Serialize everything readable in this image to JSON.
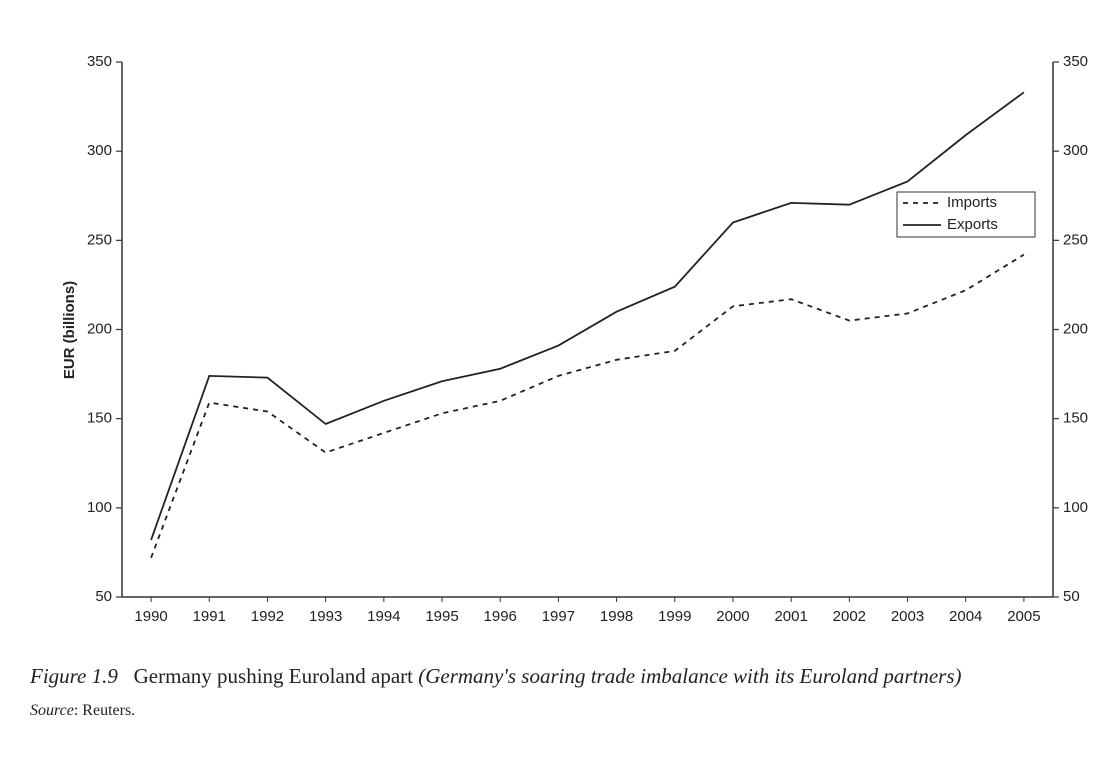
{
  "chart_data": {
    "type": "line",
    "ylabel": "EUR (billions)",
    "categories": [
      "1990",
      "1991",
      "1992",
      "1993",
      "1994",
      "1995",
      "1996",
      "1997",
      "1998",
      "1999",
      "2000",
      "2001",
      "2002",
      "2003",
      "2004",
      "2005"
    ],
    "series": [
      {
        "name": "Imports",
        "color": "#222222",
        "dash": true,
        "axis": "y",
        "values": [
          72,
          159,
          154,
          131,
          142,
          153,
          160,
          174,
          183,
          188,
          213,
          217,
          205,
          209,
          222,
          242
        ]
      },
      {
        "name": "Exports",
        "color": "#222222",
        "dash": false,
        "axis": "y",
        "values": [
          82,
          174,
          173,
          147,
          160,
          171,
          178,
          191,
          210,
          224,
          260,
          271,
          270,
          283,
          309,
          333
        ]
      }
    ],
    "ylim": [
      50,
      350
    ],
    "yticks": [
      50,
      100,
      150,
      200,
      250,
      300,
      350
    ],
    "y2lim": [
      50,
      350
    ],
    "y2ticks": [
      50,
      100,
      150,
      200,
      250,
      300,
      350
    ],
    "legend": "upper right",
    "figure_label": "Figure 1.9",
    "caption_title": "Germany pushing Euroland apart",
    "caption_note": "(Germany's soaring trade imbalance with its Euroland partners)",
    "source_label": "Source",
    "source_text": ": Reuters."
  }
}
